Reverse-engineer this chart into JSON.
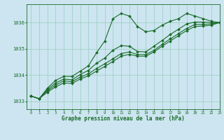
{
  "background_color": "#cce5f0",
  "grid_color": "#99ccbb",
  "line_color": "#1a6b2a",
  "xlabel": "Graphe pression niveau de la mer (hPa)",
  "xlim": [
    -0.5,
    23
  ],
  "ylim": [
    1032.7,
    1036.7
  ],
  "yticks": [
    1033,
    1034,
    1035,
    1036
  ],
  "xticks": [
    0,
    1,
    2,
    3,
    4,
    5,
    6,
    7,
    8,
    9,
    10,
    11,
    12,
    13,
    14,
    15,
    16,
    17,
    18,
    19,
    20,
    21,
    22,
    23
  ],
  "line1_x": [
    0,
    1,
    2,
    3,
    4,
    5,
    6,
    7,
    8,
    9,
    10,
    11,
    12,
    13,
    14,
    15,
    16,
    17,
    18,
    19,
    20,
    21,
    22,
    23
  ],
  "line1_y": [
    1033.2,
    1033.1,
    1033.5,
    1033.8,
    1033.95,
    1033.95,
    1034.15,
    1034.35,
    1034.85,
    1035.3,
    1036.15,
    1036.35,
    1036.25,
    1035.85,
    1035.65,
    1035.7,
    1035.9,
    1036.05,
    1036.15,
    1036.35,
    1036.25,
    1036.15,
    1036.05,
    1036.0
  ],
  "line2_x": [
    0,
    1,
    2,
    3,
    4,
    5,
    6,
    7,
    8,
    9,
    10,
    11,
    12,
    13,
    14,
    15,
    16,
    17,
    18,
    19,
    20,
    21,
    22,
    23
  ],
  "line2_y": [
    1033.2,
    1033.1,
    1033.45,
    1033.7,
    1033.85,
    1033.82,
    1034.02,
    1034.18,
    1034.45,
    1034.65,
    1034.95,
    1035.12,
    1035.1,
    1034.9,
    1034.88,
    1035.1,
    1035.32,
    1035.55,
    1035.75,
    1035.95,
    1036.02,
    1036.02,
    1036.0,
    1036.0
  ],
  "line3_x": [
    0,
    1,
    2,
    3,
    4,
    5,
    6,
    7,
    8,
    9,
    10,
    11,
    12,
    13,
    14,
    15,
    16,
    17,
    18,
    19,
    20,
    21,
    22,
    23
  ],
  "line3_y": [
    1033.2,
    1033.1,
    1033.4,
    1033.62,
    1033.78,
    1033.75,
    1033.92,
    1034.05,
    1034.25,
    1034.43,
    1034.62,
    1034.82,
    1034.88,
    1034.78,
    1034.78,
    1034.94,
    1035.17,
    1035.38,
    1035.58,
    1035.78,
    1035.93,
    1035.93,
    1035.95,
    1036.0
  ],
  "line4_x": [
    0,
    1,
    2,
    3,
    4,
    5,
    6,
    7,
    8,
    9,
    10,
    11,
    12,
    13,
    14,
    15,
    16,
    17,
    18,
    19,
    20,
    21,
    22,
    23
  ],
  "line4_y": [
    1033.2,
    1033.1,
    1033.35,
    1033.55,
    1033.7,
    1033.68,
    1033.85,
    1033.97,
    1034.15,
    1034.33,
    1034.52,
    1034.72,
    1034.79,
    1034.72,
    1034.72,
    1034.88,
    1035.1,
    1035.3,
    1035.5,
    1035.7,
    1035.85,
    1035.87,
    1035.9,
    1036.0
  ],
  "marker_size": 2.0,
  "line_width": 0.8
}
